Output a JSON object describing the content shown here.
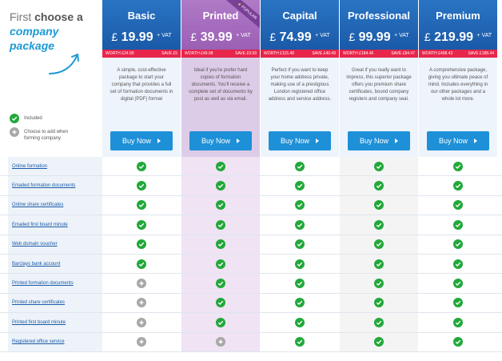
{
  "intro": {
    "line1_plain": "First ",
    "line1_bold": "choose a",
    "line2": "company",
    "line3": "package"
  },
  "legend": {
    "included": "Included",
    "addable": "Choose to add when forming company"
  },
  "packages": [
    {
      "name": "Basic",
      "currency": "£",
      "price": "19.99",
      "vat": "+ VAT",
      "worth": "WORTH £24.99",
      "save": "SAVE £5",
      "desc": "A simple, cost-effective package to start your company that provides a full set of formation documents in digital (PDF) format",
      "buy": "Buy Now"
    },
    {
      "name": "Printed",
      "currency": "£",
      "price": "39.99",
      "vat": "+ VAT",
      "worth": "WORTH £49.98",
      "save": "SAVE £9.99",
      "desc": "Ideal if you're prefer hard copies of formation documents. You'll receive a complete set of documents by post as well as via email.",
      "buy": "Buy Now",
      "badge": "POPULAR"
    },
    {
      "name": "Capital",
      "currency": "£",
      "price": "74.99",
      "vat": "+ VAT",
      "worth": "WORTH £115.48",
      "save": "SAVE £40.49",
      "desc": "Perfect if you want to keep your home address private, making use of a prestigious London registered office address and service address.",
      "buy": "Buy Now"
    },
    {
      "name": "Professional",
      "currency": "£",
      "price": "99.99",
      "vat": "+ VAT",
      "worth": "WORTH £184.46",
      "save": "SAVE £84.47",
      "desc": "Great if you really want to impress, this superior package offers you premium share certificates, bound company registers and company seal.",
      "buy": "Buy Now"
    },
    {
      "name": "Premium",
      "currency": "£",
      "price": "219.99",
      "vat": "+ VAT",
      "worth": "WORTH £408.43",
      "save": "SAVE £188.44",
      "desc": "A comprehensive package, giving you ultimate peace of mind. Includes everything in our other packages and a whole lot more.",
      "buy": "Buy Now"
    }
  ],
  "features": [
    {
      "label": "Online formation",
      "cells": [
        "check",
        "check",
        "check",
        "check",
        "check"
      ]
    },
    {
      "label": "Emailed formation documents",
      "cells": [
        "check",
        "check",
        "check",
        "check",
        "check"
      ]
    },
    {
      "label": "Online share certificates",
      "cells": [
        "check",
        "check",
        "check",
        "check",
        "check"
      ]
    },
    {
      "label": "Emailed first board minute",
      "cells": [
        "check",
        "check",
        "check",
        "check",
        "check"
      ]
    },
    {
      "label": "Web domain voucher",
      "cells": [
        "check",
        "check",
        "check",
        "check",
        "check"
      ]
    },
    {
      "label": "Barclays bank account",
      "cells": [
        "check",
        "check",
        "check",
        "check",
        "check"
      ]
    },
    {
      "label": "Printed formation documents",
      "cells": [
        "plus",
        "check",
        "check",
        "check",
        "check"
      ]
    },
    {
      "label": "Printed share certificates",
      "cells": [
        "plus",
        "check",
        "check",
        "check",
        "check"
      ]
    },
    {
      "label": "Printed first board minute",
      "cells": [
        "plus",
        "check",
        "check",
        "check",
        "check"
      ]
    },
    {
      "label": "Registered office service",
      "cells": [
        "plus",
        "plus",
        "check",
        "check",
        "check"
      ]
    }
  ],
  "colors": {
    "header_blue": "#1a5aa8",
    "header_purple": "#9b5fb5",
    "worth_red": "#e8254a",
    "buy_blue": "#1e90d8",
    "check_green": "#22a83a",
    "plus_grey": "#a8a8a8",
    "accent_blue": "#1b9ad6"
  },
  "icons": {
    "check": "check-circle-icon",
    "plus": "plus-circle-icon",
    "arrow": "curved-arrow-icon",
    "buy_caret": "caret-right-icon",
    "popular_star": "star-icon"
  }
}
